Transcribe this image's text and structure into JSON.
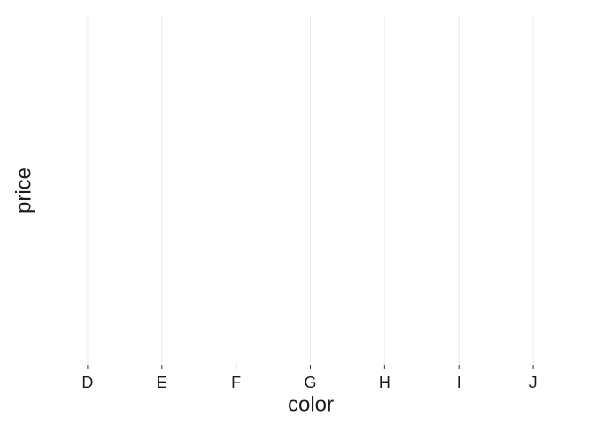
{
  "chart_data": {
    "type": "bar",
    "categories": [
      "D",
      "E",
      "F",
      "G",
      "H",
      "I",
      "J"
    ],
    "x_label": "color",
    "y_label": "price",
    "grid": true
  }
}
